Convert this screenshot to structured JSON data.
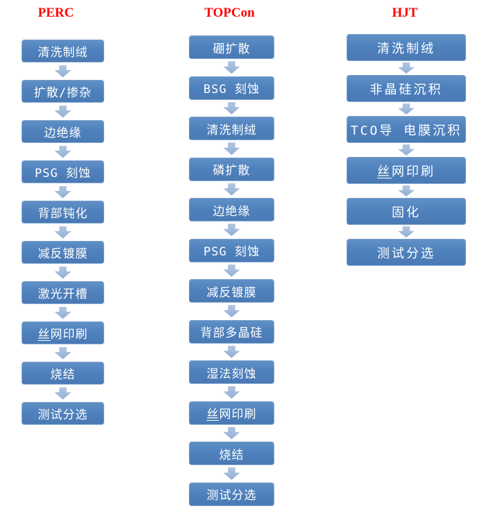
{
  "diagram": {
    "type": "flowchart",
    "subject": "Solar cell manufacturing process flows",
    "colors": {
      "box_fill": "#4F81BD",
      "arrow": "#9FB8DB",
      "title_text": "#FF0000",
      "box_text": "#FFFFFF",
      "background": "#FFFFFF"
    }
  },
  "columns": [
    {
      "title": "PERC",
      "steps": [
        {
          "u": "",
          "t": "清洗制绒"
        },
        {
          "u": "",
          "t": "扩散/掺杂"
        },
        {
          "u": "",
          "t": "边绝缘"
        },
        {
          "u": "",
          "t": "PSG 刻蚀"
        },
        {
          "u": "",
          "t": "背部钝化"
        },
        {
          "u": "",
          "t": "减反镀膜"
        },
        {
          "u": "",
          "t": "激光开槽"
        },
        {
          "u": "丝",
          "t": "网印刷"
        },
        {
          "u": "",
          "t": "烧结"
        },
        {
          "u": "",
          "t": "测试分选"
        }
      ]
    },
    {
      "title": "TOPCon",
      "steps": [
        {
          "u": "",
          "t": "硼扩散"
        },
        {
          "u": "",
          "t": "BSG 刻蚀"
        },
        {
          "u": "",
          "t": "清洗制绒"
        },
        {
          "u": "",
          "t": "磷扩散"
        },
        {
          "u": "",
          "t": "边绝缘"
        },
        {
          "u": "",
          "t": "PSG 刻蚀"
        },
        {
          "u": "",
          "t": "减反镀膜"
        },
        {
          "u": "",
          "t": "背部多晶硅"
        },
        {
          "u": "",
          "t": "湿法刻蚀"
        },
        {
          "u": "丝",
          "t": "网印刷"
        },
        {
          "u": "",
          "t": "烧结"
        },
        {
          "u": "",
          "t": "测试分选"
        }
      ]
    },
    {
      "title": "HJT",
      "steps": [
        {
          "u": "",
          "t": "清洗制绒"
        },
        {
          "u": "",
          "t": "非晶硅沉积"
        },
        {
          "u": "",
          "t": "TCO导 电膜沉积"
        },
        {
          "u": "丝",
          "t": "网印刷"
        },
        {
          "u": "",
          "t": "固化"
        },
        {
          "u": "",
          "t": "测试分选"
        }
      ]
    }
  ]
}
